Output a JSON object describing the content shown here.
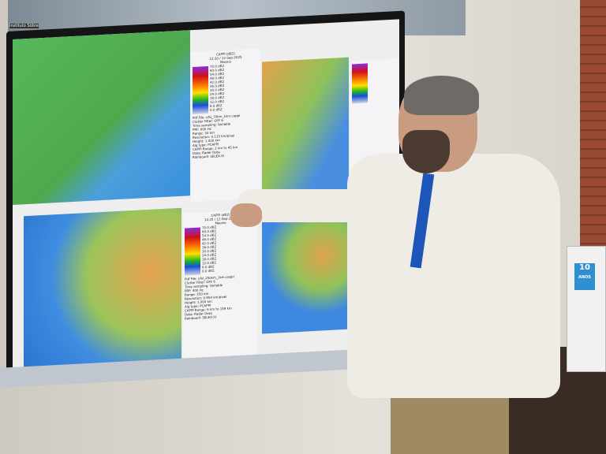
{
  "screen": {
    "top_label": "Instituto Sôbre",
    "panels": [
      {
        "title": "CAPPI (dBZ)",
        "time": "12:20 / 12-Sep-2025",
        "place": "Maceio",
        "scale": [
          "70.0 dBZ",
          "60.0 dBZ",
          "54.0 dBZ",
          "48.0 dBZ",
          "42.0 dBZ",
          "36.0 dBZ",
          "30.0 dBZ",
          "24.0 dBZ",
          "18.0 dBZ",
          "12.0 dBZ",
          "6.0 dBZ",
          "0.0 dBZ"
        ],
        "info": [
          "Pdf File: ufsl_70km_1km.cappi",
          "Clutter Filter: OFF 6",
          "Time sampling: Variable",
          "PRF: 600 Hz",
          "Range: 30 km",
          "Resolution: 0.115 km/pixel",
          "Height: 1.000 km",
          "Alg type: PCAPPI",
          "CAPPI Range: 2 km to 45 km",
          "Data: Radar Data",
          "Rainbow® SELEX-SI"
        ]
      },
      {
        "title": "CAPPI (dBZ)",
        "time": "12:20 / 12-Sep-2025",
        "place": "Maceio",
        "scale": [
          "70.0 dBZ",
          "60.0 dBZ",
          "54.0 dBZ",
          "48.0 dBZ",
          "42.0 dBZ",
          "36.0 dBZ",
          "30.0 dBZ",
          "24.0 dBZ",
          "18.0 dBZ",
          "12.0 dBZ",
          "6.0 dBZ",
          "0.0 dBZ"
        ],
        "info": [
          "Pdf File: ufsl_250km_1km.cappi",
          "Clutter Filter: OFF 6",
          "Time sampling: Variable",
          "PRF: 400 Hz",
          "Range: 250 km",
          "Resolution: 0.954 km/pixel",
          "Height: 1.000 km",
          "Alg type: PCAPPI",
          "CAPPI Range: 6 km to 159 km",
          "Data: Radar Data",
          "Rainbow® SELEX-SI"
        ]
      }
    ]
  },
  "fridge_badge": {
    "number": "10",
    "text": "ANOS"
  }
}
